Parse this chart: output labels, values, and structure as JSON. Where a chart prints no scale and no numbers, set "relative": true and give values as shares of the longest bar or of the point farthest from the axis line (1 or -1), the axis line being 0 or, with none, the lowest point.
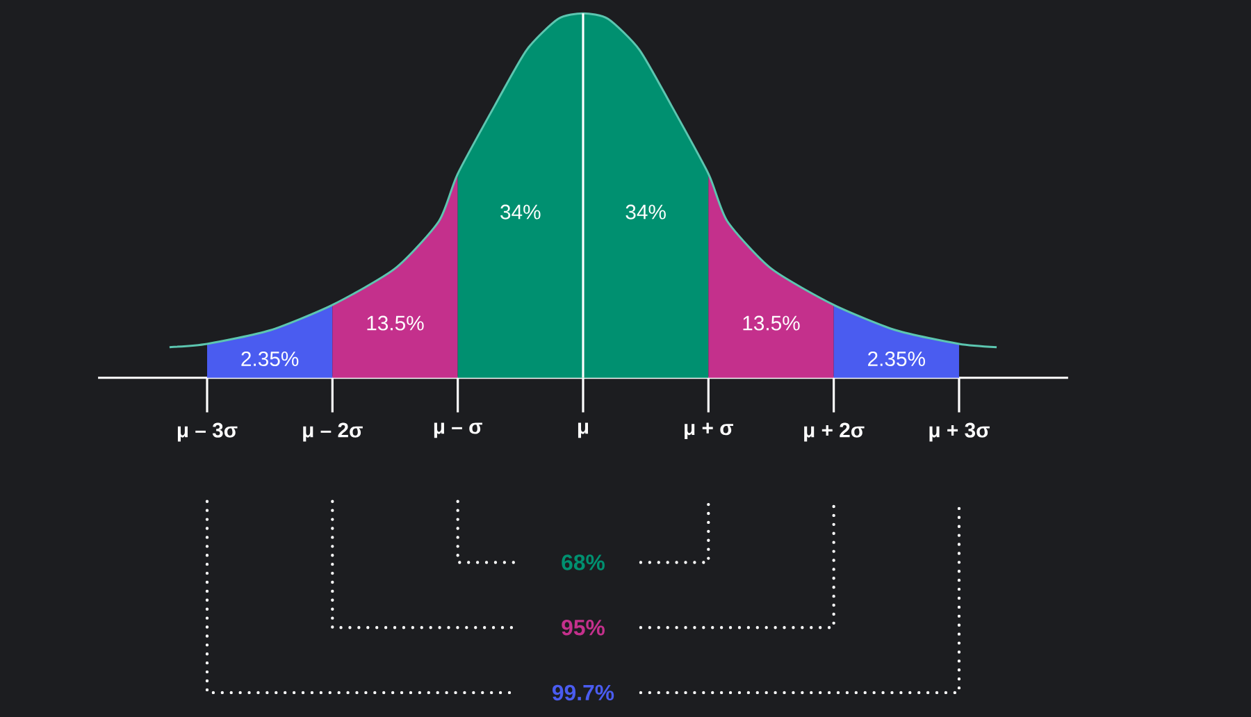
{
  "chart_data": {
    "type": "area",
    "relative": true,
    "grid": false,
    "xlim": [
      -3.87,
      3.87
    ],
    "xticks": [
      {
        "value": -3,
        "label": "μ – 3σ"
      },
      {
        "value": -2,
        "label": "μ – 2σ"
      },
      {
        "value": -1,
        "label": "μ – σ"
      },
      {
        "value": 0,
        "label": "μ"
      },
      {
        "value": 1,
        "label": "μ + σ"
      },
      {
        "value": 2,
        "label": "μ + 2σ"
      },
      {
        "value": 3,
        "label": "μ + 3σ"
      }
    ],
    "series": [
      {
        "type": "line",
        "color": "#5cc6b0",
        "x": [
          -3.3,
          -3,
          -2.5,
          -2,
          -1.5,
          -1.15,
          -1,
          -0.7,
          -0.45,
          -0.2,
          0,
          0.2,
          0.45,
          0.7,
          1,
          1.15,
          1.5,
          2,
          2.5,
          3,
          3.3
        ],
        "values": [
          0.084,
          0.093,
          0.13,
          0.2,
          0.3,
          0.43,
          0.56,
          0.75,
          0.9,
          0.985,
          1,
          0.985,
          0.9,
          0.75,
          0.56,
          0.43,
          0.3,
          0.2,
          0.13,
          0.093,
          0.084
        ]
      },
      {
        "color": "#4a5cf0",
        "x": [
          -3,
          -2.5,
          -2
        ],
        "values": [
          0.093,
          0.13,
          0.2
        ]
      },
      {
        "color": "#c4308c",
        "x": [
          -2,
          -1.5,
          -1.15,
          -1
        ],
        "values": [
          0.2,
          0.3,
          0.43,
          0.56
        ]
      },
      {
        "color": "#009070",
        "x": [
          -1,
          -0.7,
          -0.45,
          -0.2,
          0
        ],
        "values": [
          0.56,
          0.75,
          0.9,
          0.985,
          1
        ]
      },
      {
        "color": "#009070",
        "x": [
          0,
          0.2,
          0.45,
          0.7,
          1
        ],
        "values": [
          1,
          0.985,
          0.9,
          0.75,
          0.56
        ]
      },
      {
        "color": "#c4308c",
        "x": [
          1,
          1.15,
          1.5,
          2
        ],
        "values": [
          0.56,
          0.43,
          0.3,
          0.2
        ]
      },
      {
        "color": "#4a5cf0",
        "x": [
          2,
          2.5,
          3
        ],
        "values": [
          0.2,
          0.13,
          0.093
        ]
      }
    ],
    "ref_lines": [
      {
        "axis": "x",
        "value": 0,
        "color": "#ffffff"
      }
    ],
    "annotations": [
      "2.35%",
      "13.5%",
      "34%",
      "34%",
      "13.5%",
      "2.35%",
      "68%",
      "95%",
      "99.7%"
    ]
  }
}
